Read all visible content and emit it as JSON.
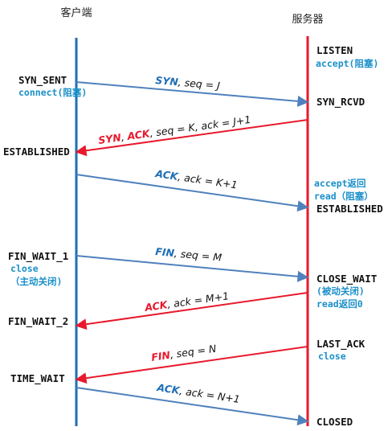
{
  "headers": {
    "client": "客户端",
    "server": "服务器"
  },
  "client_states": [
    {
      "id": "syn-sent",
      "text": "SYN_SENT"
    },
    {
      "id": "established",
      "text": "ESTABLISHED"
    },
    {
      "id": "fin-wait-1",
      "text": "FIN_WAIT_1"
    },
    {
      "id": "fin-wait-2",
      "text": "FIN_WAIT_2"
    },
    {
      "id": "time-wait",
      "text": "TIME_WAIT"
    }
  ],
  "client_notes": [
    {
      "id": "connect",
      "text": "connect(阻塞)"
    },
    {
      "id": "close",
      "text": "close"
    },
    {
      "id": "active-close",
      "text": "（主动关闭)"
    }
  ],
  "server_states": [
    {
      "id": "listen",
      "text": "LISTEN"
    },
    {
      "id": "syn-rcvd",
      "text": "SYN_RCVD"
    },
    {
      "id": "established",
      "text": "ESTABLISHED"
    },
    {
      "id": "close-wait",
      "text": "CLOSE_WAIT"
    },
    {
      "id": "last-ack",
      "text": "LAST_ACK"
    },
    {
      "id": "closed",
      "text": "CLOSED"
    }
  ],
  "server_notes": [
    {
      "id": "accept-blocked",
      "text": "accept(阻塞)"
    },
    {
      "id": "accept-returns",
      "text": "accept返回"
    },
    {
      "id": "read-blocked",
      "text": "read（阻塞）"
    },
    {
      "id": "passive-close",
      "text": "(被动关闭)"
    },
    {
      "id": "read-returns-0",
      "text": "read返回0"
    },
    {
      "id": "close",
      "text": "close"
    }
  ],
  "messages": [
    {
      "id": "syn",
      "direction": "to-server",
      "parts": [
        {
          "t": "SYN",
          "kw": true
        },
        {
          "t": ", seq = J",
          "kw": false
        }
      ]
    },
    {
      "id": "syn-ack",
      "direction": "to-client",
      "parts": [
        {
          "t": "SYN",
          "kw": true
        },
        {
          "t": ", ",
          "kw": false
        },
        {
          "t": "ACK",
          "kw": true
        },
        {
          "t": ", seq = K, ack = J+1",
          "kw": false
        }
      ]
    },
    {
      "id": "ack-1",
      "direction": "to-server",
      "parts": [
        {
          "t": "ACK",
          "kw": true
        },
        {
          "t": ", ack = K+1",
          "kw": false
        }
      ]
    },
    {
      "id": "fin-1",
      "direction": "to-server",
      "parts": [
        {
          "t": "FIN",
          "kw": true
        },
        {
          "t": ", seq = M",
          "kw": false
        }
      ]
    },
    {
      "id": "ack-2",
      "direction": "to-client",
      "parts": [
        {
          "t": "ACK",
          "kw": true
        },
        {
          "t": ", ack = M+1",
          "kw": false
        }
      ]
    },
    {
      "id": "fin-2",
      "direction": "to-client",
      "parts": [
        {
          "t": "FIN",
          "kw": true
        },
        {
          "t": ", seq = N",
          "kw": false
        }
      ]
    },
    {
      "id": "ack-3",
      "direction": "to-server",
      "parts": [
        {
          "t": "ACK",
          "kw": true
        },
        {
          "t": ", ack = N+1",
          "kw": false
        }
      ]
    }
  ],
  "colors": {
    "client_line": "#1f6fb5",
    "server_line": "#e8192c",
    "to_server_arrow": "#4f81bd",
    "to_client_arrow": "#e8192c",
    "to_server_label": "#1f6fb5",
    "note_blue": "#1a8fc9",
    "text": "#111111"
  }
}
